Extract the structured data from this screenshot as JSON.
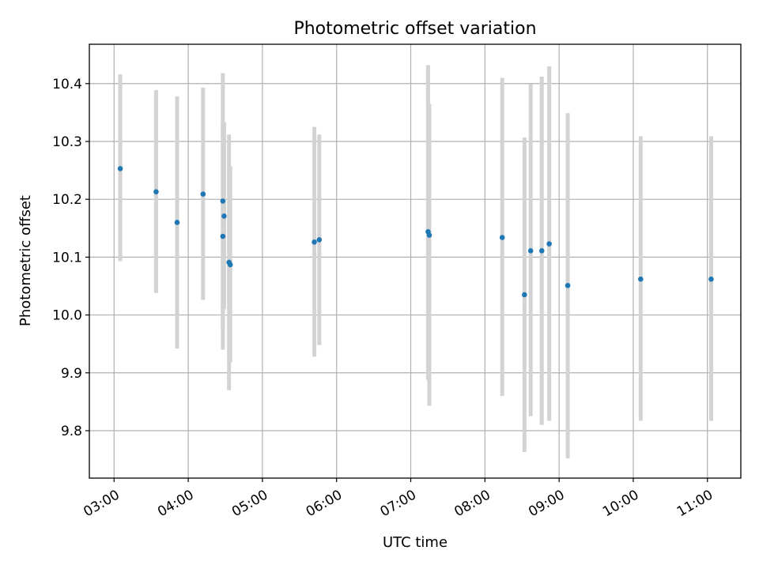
{
  "chart_data": {
    "type": "scatter",
    "title": "Photometric offset variation",
    "xlabel": "UTC time",
    "ylabel": "Photometric offset",
    "xlim": [
      "02:40",
      "11:27"
    ],
    "ylim": [
      9.718,
      10.468
    ],
    "grid": true,
    "colors": {
      "point": "#1f77b4",
      "errorbar": "#d3d3d3"
    },
    "x_ticks": [
      "03:00",
      "04:00",
      "05:00",
      "06:00",
      "07:00",
      "08:00",
      "09:00",
      "10:00",
      "11:00"
    ],
    "y_ticks": [
      "9.8",
      "9.9",
      "10.0",
      "10.1",
      "10.2",
      "10.3",
      "10.4"
    ],
    "series": [
      {
        "x": [
          "03:05",
          "03:34",
          "03:51",
          "04:12",
          "04:28",
          "04:28",
          "04:29",
          "04:33",
          "04:34",
          "05:42",
          "05:46",
          "07:14",
          "07:15",
          "08:14",
          "08:32",
          "08:37",
          "08:46",
          "08:52",
          "09:07",
          "10:06",
          "11:03"
        ],
        "y": [
          10.253,
          10.213,
          10.16,
          10.209,
          10.136,
          10.197,
          10.171,
          10.091,
          10.087,
          10.126,
          10.13,
          10.144,
          10.138,
          10.134,
          10.035,
          10.111,
          10.111,
          10.123,
          10.051,
          10.062,
          10.062
        ],
        "yerr_low": [
          10.093,
          10.038,
          9.942,
          10.026,
          9.94,
          9.976,
          10.01,
          9.87,
          9.918,
          9.928,
          9.948,
          9.888,
          9.843,
          9.86,
          9.763,
          9.825,
          9.81,
          9.817,
          9.752,
          9.817,
          9.817
        ],
        "yerr_high": [
          10.416,
          10.389,
          10.378,
          10.393,
          10.333,
          10.418,
          10.333,
          10.312,
          10.257,
          10.325,
          10.312,
          10.432,
          10.365,
          10.41,
          10.307,
          10.399,
          10.412,
          10.43,
          10.349,
          10.309,
          10.309
        ]
      }
    ]
  }
}
